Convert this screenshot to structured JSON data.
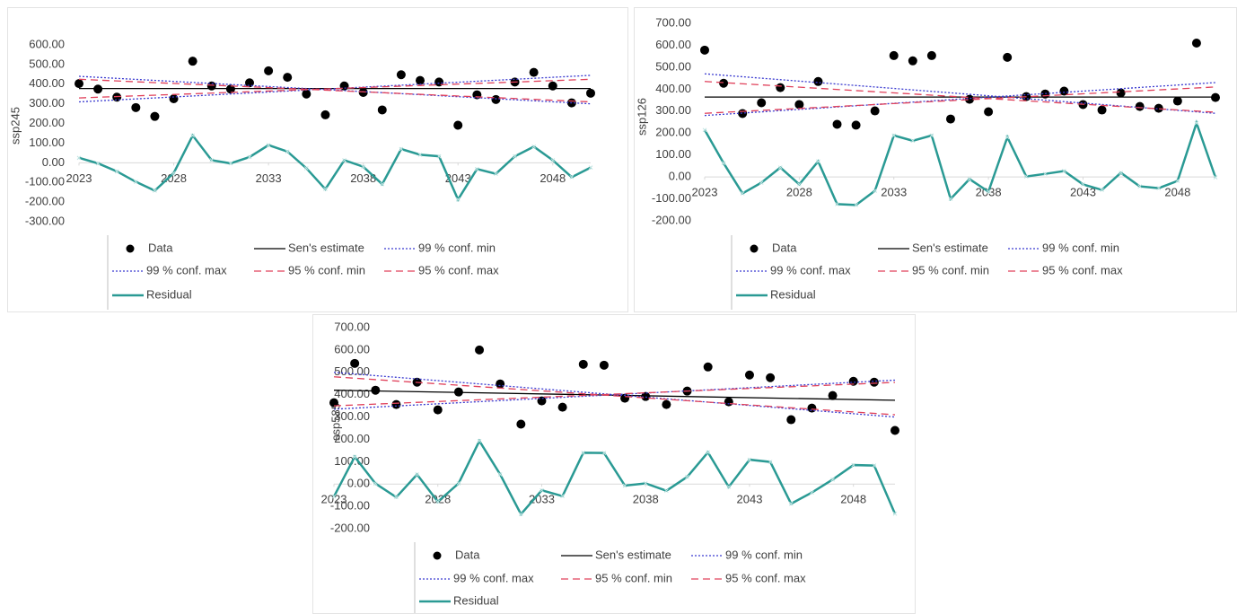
{
  "chart_data": [
    {
      "type": "line",
      "y_label": "ssp245",
      "x": [
        2023,
        2024,
        2025,
        2026,
        2027,
        2028,
        2029,
        2030,
        2031,
        2032,
        2033,
        2034,
        2035,
        2036,
        2037,
        2038,
        2039,
        2040,
        2041,
        2042,
        2043,
        2044,
        2045,
        2046,
        2047,
        2048,
        2049,
        2050
      ],
      "xlim": [
        2023,
        2050
      ],
      "xticks": [
        2023,
        2028,
        2033,
        2038,
        2043,
        2048
      ],
      "ylim": [
        -300,
        600
      ],
      "yticks": [
        {
          "value": -300,
          "label": "-300.00"
        },
        {
          "value": -200,
          "label": "-200.00"
        },
        {
          "value": -100,
          "label": "-100.00"
        },
        {
          "value": 0,
          "label": "0.00"
        },
        {
          "value": 100,
          "label": "100.00"
        },
        {
          "value": 200,
          "label": "200.00"
        },
        {
          "value": 300,
          "label": "300.00"
        },
        {
          "value": 400,
          "label": "400.00"
        },
        {
          "value": 500,
          "label": "500.00"
        },
        {
          "value": 600,
          "label": "600.00"
        }
      ],
      "series": [
        {
          "name": "Data",
          "color": "#000000",
          "style": "markers",
          "values": [
            403,
            375,
            334,
            281,
            236,
            326,
            517,
            391,
            375,
            407,
            468,
            435,
            350,
            244,
            391,
            358,
            269,
            448,
            419,
            411,
            191,
            346,
            322,
            411,
            460,
            391,
            305,
            354
          ]
        },
        {
          "name": "Sen's estimate",
          "color": "#000000",
          "style": "solid",
          "x": [
            2023,
            2050
          ],
          "values": [
            378,
            378
          ]
        },
        {
          "name": "99 % conf. min",
          "color": "#3b3bd0",
          "style": "dotted",
          "x": [
            2023,
            2050
          ],
          "values": [
            440,
            300
          ]
        },
        {
          "name": "99 % conf. max",
          "color": "#3b3bd0",
          "style": "dotted",
          "x": [
            2023,
            2050
          ],
          "values": [
            310,
            445
          ]
        },
        {
          "name": "95 % conf. min",
          "color": "#e0405a",
          "style": "dashed",
          "x": [
            2023,
            2050
          ],
          "values": [
            425,
            310
          ]
        },
        {
          "name": "95 % conf. max",
          "color": "#e0405a",
          "style": "dashed",
          "x": [
            2023,
            2050
          ],
          "values": [
            330,
            425
          ]
        },
        {
          "name": "Residual",
          "color": "#2a9a94",
          "style": "line-markers",
          "values": [
            25,
            -3,
            -44,
            -97,
            -142,
            -52,
            139,
            13,
            -3,
            29,
            90,
            57,
            -28,
            -134,
            13,
            -20,
            -109,
            70,
            41,
            33,
            -187,
            -32,
            -56,
            33,
            82,
            13,
            -73,
            -24
          ]
        }
      ]
    },
    {
      "type": "line",
      "y_label": "ssp126",
      "x": [
        2023,
        2024,
        2025,
        2026,
        2027,
        2028,
        2029,
        2030,
        2031,
        2032,
        2033,
        2034,
        2035,
        2036,
        2037,
        2038,
        2039,
        2040,
        2041,
        2042,
        2043,
        2044,
        2045,
        2046,
        2047,
        2048,
        2049,
        2050
      ],
      "xlim": [
        2023,
        2050
      ],
      "xticks": [
        2023,
        2028,
        2033,
        2038,
        2043,
        2048
      ],
      "ylim": [
        -200,
        700
      ],
      "yticks": [
        {
          "value": -200,
          "label": "-200.00"
        },
        {
          "value": -100,
          "label": "-100.00"
        },
        {
          "value": 0,
          "label": "0.00"
        },
        {
          "value": 100,
          "label": "100.00"
        },
        {
          "value": 200,
          "label": "200.00"
        },
        {
          "value": 300,
          "label": "300.00"
        },
        {
          "value": 400,
          "label": "400.00"
        },
        {
          "value": 500,
          "label": "500.00"
        },
        {
          "value": 600,
          "label": "600.00"
        },
        {
          "value": 700,
          "label": "700.00"
        }
      ],
      "series": [
        {
          "name": "Data",
          "color": "#000000",
          "style": "markers",
          "values": [
            578,
            427,
            289,
            338,
            407,
            330,
            435,
            240,
            236,
            301,
            553,
            529,
            553,
            264,
            354,
            297,
            545,
            366,
            378,
            391,
            330,
            305,
            383,
            321,
            313,
            346,
            610,
            362
          ]
        },
        {
          "name": "Sen's estimate",
          "color": "#000000",
          "style": "solid",
          "x": [
            2023,
            2050
          ],
          "values": [
            364,
            364
          ]
        },
        {
          "name": "99 % conf. min",
          "color": "#3b3bd0",
          "style": "dotted",
          "x": [
            2023,
            2050
          ],
          "values": [
            470,
            290
          ]
        },
        {
          "name": "99 % conf. max",
          "color": "#3b3bd0",
          "style": "dotted",
          "x": [
            2023,
            2050
          ],
          "values": [
            280,
            430
          ]
        },
        {
          "name": "95 % conf. min",
          "color": "#e0405a",
          "style": "dashed",
          "x": [
            2023,
            2050
          ],
          "values": [
            435,
            295
          ]
        },
        {
          "name": "95 % conf. max",
          "color": "#e0405a",
          "style": "dashed",
          "x": [
            2023,
            2050
          ],
          "values": [
            290,
            410
          ]
        },
        {
          "name": "Residual",
          "color": "#2a9a94",
          "style": "line-markers",
          "values": [
            214,
            63,
            -75,
            -26,
            43,
            -34,
            71,
            -124,
            -128,
            -63,
            189,
            165,
            189,
            -100,
            -10,
            -67,
            181,
            2,
            14,
            27,
            -34,
            -59,
            19,
            -43,
            -51,
            -18,
            246,
            -2
          ]
        }
      ]
    },
    {
      "type": "line",
      "y_label": "ssp585",
      "x": [
        2023,
        2024,
        2025,
        2026,
        2027,
        2028,
        2029,
        2030,
        2031,
        2032,
        2033,
        2034,
        2035,
        2036,
        2037,
        2038,
        2039,
        2040,
        2041,
        2042,
        2043,
        2044,
        2045,
        2046,
        2047,
        2048,
        2049,
        2050
      ],
      "xlim": [
        2023,
        2050
      ],
      "xticks": [
        2023,
        2028,
        2033,
        2038,
        2043,
        2048
      ],
      "ylim": [
        -200,
        700
      ],
      "yticks": [
        {
          "value": -200,
          "label": "-200.00"
        },
        {
          "value": -100,
          "label": "-100.00"
        },
        {
          "value": 0,
          "label": "0.00"
        },
        {
          "value": 100,
          "label": "100.00"
        },
        {
          "value": 200,
          "label": "200.00"
        },
        {
          "value": 300,
          "label": "300.00"
        },
        {
          "value": 400,
          "label": "400.00"
        },
        {
          "value": 500,
          "label": "500.00"
        },
        {
          "value": 600,
          "label": "600.00"
        },
        {
          "value": 700,
          "label": "700.00"
        }
      ],
      "series": [
        {
          "name": "Data",
          "color": "#000000",
          "style": "markers",
          "values": [
            364,
            540,
            420,
            356,
            456,
            332,
            412,
            600,
            448,
            268,
            372,
            344,
            536,
            532,
            384,
            392,
            356,
            416,
            524,
            368,
            488,
            476,
            288,
            340,
            396,
            460,
            456,
            240
          ]
        },
        {
          "name": "Sen's estimate",
          "color": "#000000",
          "style": "solid",
          "x": [
            2023,
            2050
          ],
          "values": [
            420,
            375
          ]
        },
        {
          "name": "99 % conf. min",
          "color": "#3b3bd0",
          "style": "dotted",
          "x": [
            2023,
            2050
          ],
          "values": [
            500,
            300
          ]
        },
        {
          "name": "99 % conf. max",
          "color": "#3b3bd0",
          "style": "dotted",
          "x": [
            2023,
            2050
          ],
          "values": [
            335,
            465
          ]
        },
        {
          "name": "95 % conf. min",
          "color": "#e0405a",
          "style": "dashed",
          "x": [
            2023,
            2050
          ],
          "values": [
            480,
            310
          ]
        },
        {
          "name": "95 % conf. max",
          "color": "#e0405a",
          "style": "dashed",
          "x": [
            2023,
            2050
          ],
          "values": [
            350,
            455
          ]
        },
        {
          "name": "Residual",
          "color": "#2a9a94",
          "style": "line-markers",
          "values": [
            -56,
            122,
            2,
            -59,
            43,
            -79,
            3,
            193,
            43,
            -135,
            -28,
            -54,
            140,
            139,
            -7,
            3,
            -30,
            32,
            142,
            -13,
            109,
            99,
            -88,
            -38,
            20,
            85,
            83,
            -133
          ]
        }
      ]
    }
  ]
}
